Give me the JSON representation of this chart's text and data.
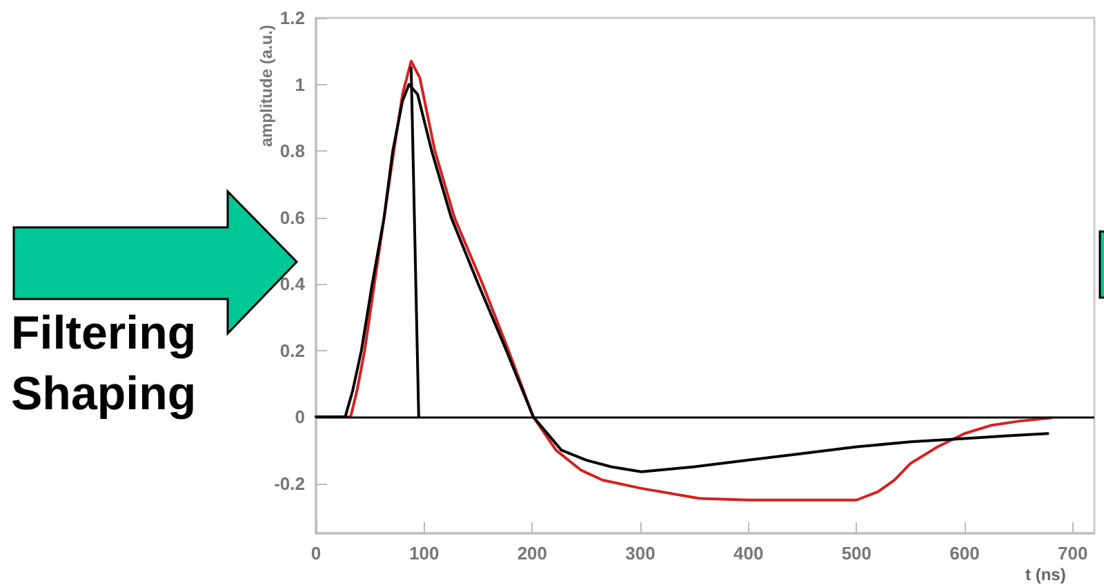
{
  "chart_data": {
    "type": "line",
    "xlabel": "t (ns)",
    "ylabel": "amplitude (a.u.)",
    "annotations": [
      "Filtering",
      "Shaping"
    ],
    "xlim": [
      0,
      720
    ],
    "xticks": [
      0,
      100,
      200,
      300,
      400,
      500,
      600,
      700
    ],
    "ylim": [
      -0.35,
      1.2
    ],
    "yticks": [
      -0.2,
      0,
      0.2,
      0.4,
      0.6,
      0.8,
      1,
      1.2
    ],
    "grid": false,
    "marker": "none",
    "line_style": "solid",
    "ref_lines": [
      {
        "axis": "y",
        "value": 0,
        "color": "#000000"
      }
    ],
    "series": [
      {
        "color": "#d62020",
        "x": [
          0,
          20,
          32,
          38,
          45,
          54,
          63,
          72,
          80,
          88,
          96,
          110,
          128,
          154,
          178,
          201,
          222,
          245,
          265,
          301,
          354,
          400,
          450,
          500,
          520,
          535,
          550,
          575,
          600,
          625,
          650,
          680
        ],
        "values": [
          0,
          0,
          0,
          0.08,
          0.2,
          0.4,
          0.6,
          0.8,
          0.97,
          1.07,
          1.02,
          0.8,
          0.6,
          0.4,
          0.2,
          0,
          -0.1,
          -0.16,
          -0.19,
          -0.215,
          -0.245,
          -0.25,
          -0.25,
          -0.25,
          -0.225,
          -0.19,
          -0.14,
          -0.09,
          -0.05,
          -0.025,
          -0.013,
          -0.003
        ]
      },
      {
        "color": "#000000",
        "x": [
          0,
          20,
          27,
          34,
          42,
          52,
          63,
          71,
          80,
          86,
          94,
          107,
          125,
          150,
          176,
          201,
          227,
          250,
          273,
          301,
          350,
          400,
          450,
          500,
          550,
          600,
          640,
          677
        ],
        "values": [
          0,
          0,
          0,
          0.08,
          0.2,
          0.4,
          0.6,
          0.8,
          0.95,
          1.0,
          0.97,
          0.8,
          0.6,
          0.4,
          0.2,
          0,
          -0.1,
          -0.13,
          -0.15,
          -0.165,
          -0.15,
          -0.13,
          -0.11,
          -0.09,
          -0.075,
          -0.065,
          -0.057,
          -0.05
        ]
      },
      {
        "color": "#000000",
        "x": [
          88,
          95
        ],
        "values": [
          1.05,
          0
        ]
      }
    ]
  }
}
